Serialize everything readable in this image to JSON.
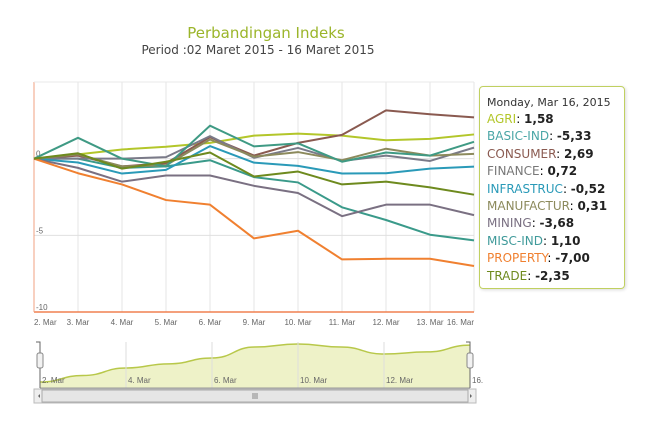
{
  "chart_data": {
    "type": "line",
    "title": "Perbandingan Indeks",
    "subtitle": "Period :02 Maret 2015 - 16 Maret 2015",
    "categories": [
      "2. Mar",
      "3. Mar",
      "4. Mar",
      "5. Mar",
      "6. Mar",
      "9. Mar",
      "10. Mar",
      "11. Mar",
      "12. Mar",
      "13. Mar",
      "16. Mar"
    ],
    "ylim": [
      -10,
      5
    ],
    "yticks": [
      "0",
      "-5",
      "-10"
    ],
    "grid": true,
    "series": [
      {
        "name": "AGRI",
        "color": "#b3c62a",
        "values": [
          0,
          0.28,
          0.6,
          0.78,
          1.03,
          1.5,
          1.63,
          1.5,
          1.2,
          1.29,
          1.58
        ]
      },
      {
        "name": "BASIC-IND",
        "color": "#3a9a8a",
        "label_color": "#4aa6a6",
        "values": [
          0,
          0,
          -0.6,
          -0.5,
          -0.1,
          -1.2,
          -1.55,
          -3.17,
          -4.0,
          -4.96,
          -5.33
        ]
      },
      {
        "name": "CONSUMER",
        "color": "#8a5a50",
        "values": [
          0,
          0.2,
          -0.5,
          -0.3,
          1.4,
          0.2,
          1.03,
          1.55,
          3.15,
          2.9,
          2.69
        ]
      },
      {
        "name": "FINANCE",
        "color": "#7a7a88",
        "label_color": "#777777",
        "values": [
          0,
          0,
          0,
          0.1,
          1.47,
          0.06,
          0.7,
          -0.15,
          0.2,
          -0.15,
          0.72
        ]
      },
      {
        "name": "INFRASTRUC",
        "color": "#2a9ab8",
        "values": [
          0,
          -0.25,
          -0.97,
          -0.73,
          0.82,
          -0.26,
          -0.47,
          -0.97,
          -0.95,
          -0.65,
          -0.52
        ]
      },
      {
        "name": "MANUFACTUR",
        "color": "#8c8a5c",
        "values": [
          0,
          0.28,
          -0.5,
          -0.43,
          1.25,
          0.13,
          0.43,
          -0.1,
          0.65,
          0.2,
          0.31
        ]
      },
      {
        "name": "MINING",
        "color": "#7a7082",
        "values": [
          0,
          -0.6,
          -1.5,
          -1.1,
          -1.1,
          -1.77,
          -2.24,
          -3.75,
          -3.0,
          -3.0,
          -3.68
        ]
      },
      {
        "name": "MISC-IND",
        "color": "#3f9a84",
        "label_color": "#3f9a9a",
        "values": [
          0,
          1.36,
          0,
          -0.5,
          2.15,
          0.8,
          1.0,
          -0.2,
          0.4,
          0.2,
          1.1
        ]
      },
      {
        "name": "PROPERTY",
        "color": "#f08030",
        "values": [
          0,
          -0.95,
          -1.68,
          -2.7,
          -3.0,
          -5.2,
          -4.7,
          -6.57,
          -6.53,
          -6.53,
          -7.0
        ]
      },
      {
        "name": "TRADE",
        "color": "#6e8a1e",
        "values": [
          0,
          0.35,
          -0.65,
          -0.2,
          0.4,
          -1.16,
          -0.84,
          -1.68,
          -1.5,
          -1.87,
          -2.35
        ]
      }
    ],
    "navigator": {
      "ticks": [
        "2. Mar",
        "4. Mar",
        "6. Mar",
        "10. Mar",
        "12. Mar",
        "16."
      ]
    }
  },
  "tooltip": {
    "date": "Monday, Mar 16, 2015",
    "rows": [
      {
        "label": "AGRI",
        "value": "1,58"
      },
      {
        "label": "BASIC-IND",
        "value": "-5,33"
      },
      {
        "label": "CONSUMER",
        "value": "2,69"
      },
      {
        "label": "FINANCE",
        "value": "0,72"
      },
      {
        "label": "INFRASTRUC",
        "value": "-0,52"
      },
      {
        "label": "MANUFACTUR",
        "value": "0,31"
      },
      {
        "label": "MINING",
        "value": "-3,68"
      },
      {
        "label": "MISC-IND",
        "value": "1,10"
      },
      {
        "label": "PROPERTY",
        "value": "-7,00"
      },
      {
        "label": "TRADE",
        "value": "-2,35"
      }
    ]
  }
}
